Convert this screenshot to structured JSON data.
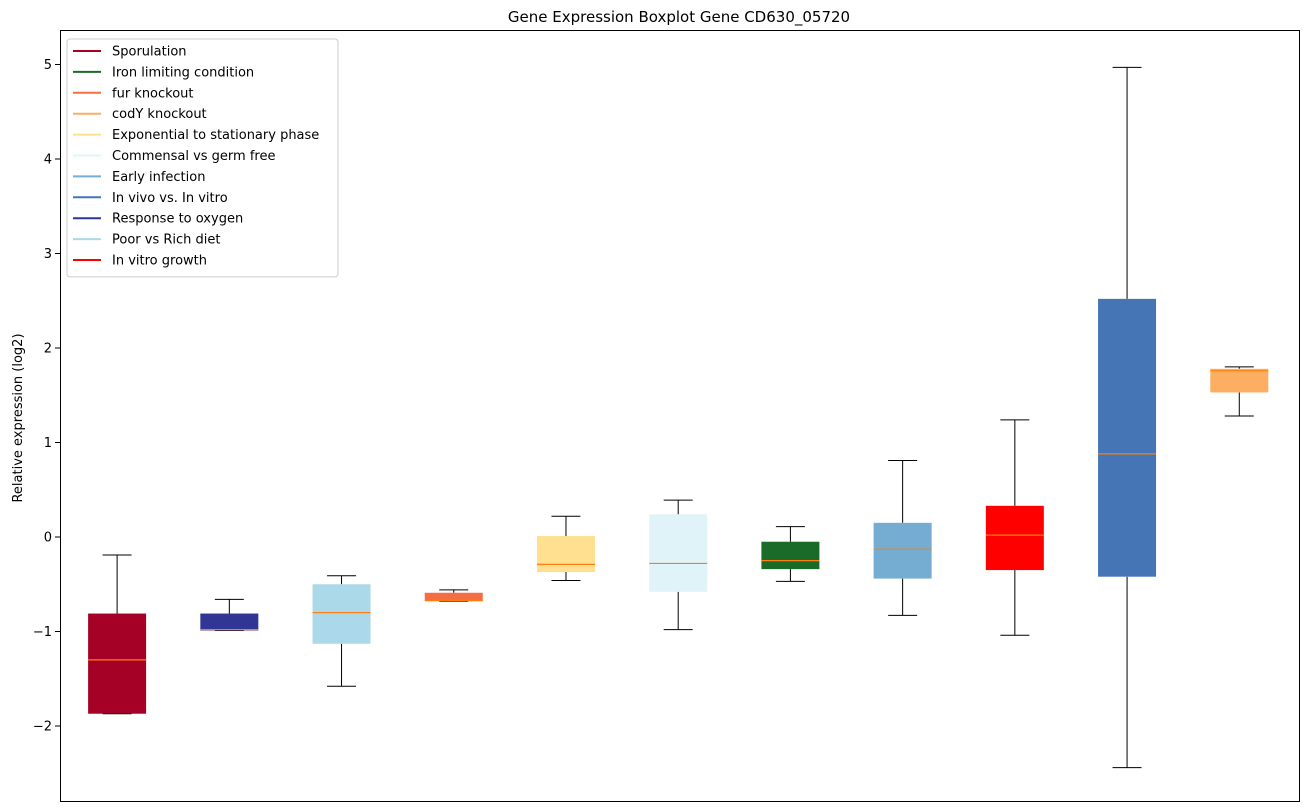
{
  "chart_data": {
    "type": "boxplot",
    "title": "Gene Expression Boxplot Gene CD630_05720",
    "xlabel": "",
    "ylabel": "Relative expression (log2)",
    "ylim": [
      -2.8,
      5.35
    ],
    "yticks": [
      -2,
      -1,
      0,
      1,
      2,
      3,
      4,
      5
    ],
    "ytick_labels": [
      "−2",
      "−1",
      "0",
      "1",
      "2",
      "3",
      "4",
      "5"
    ],
    "legend": [
      {
        "label": "Sporulation",
        "color": "#a50026"
      },
      {
        "label": "Iron limiting condition",
        "color": "#1a6b2a"
      },
      {
        "label": "fur knockout",
        "color": "#f46d43"
      },
      {
        "label": "codY knockout",
        "color": "#fdae61"
      },
      {
        "label": "Exponential to stationary phase",
        "color": "#fee090"
      },
      {
        "label": "Commensal vs germ free",
        "color": "#e0f3f8"
      },
      {
        "label": "Early infection",
        "color": "#74add1"
      },
      {
        "label": "In vivo vs. In vitro",
        "color": "#4575b4"
      },
      {
        "label": "Response to oxygen",
        "color": "#313695"
      },
      {
        "label": "Poor vs Rich diet",
        "color": "#abd9e9"
      },
      {
        "label": "In vitro growth",
        "color": "#ff0000"
      }
    ],
    "boxes": [
      {
        "condition": "Sporulation",
        "color": "#a50026",
        "whislo": -1.87,
        "q1": -1.87,
        "median": -1.3,
        "q3": -0.81,
        "whishi": -0.19
      },
      {
        "condition": "Response to oxygen",
        "color": "#313695",
        "whislo": -0.99,
        "q1": -0.99,
        "median": -0.98,
        "q3": -0.81,
        "whishi": -0.66
      },
      {
        "condition": "Poor vs Rich diet",
        "color": "#abd9e9",
        "whislo": -1.58,
        "q1": -1.13,
        "median": -0.8,
        "q3": -0.5,
        "whishi": -0.41
      },
      {
        "condition": "fur knockout",
        "color": "#f46d43",
        "whislo": -0.68,
        "q1": -0.68,
        "median": -0.67,
        "q3": -0.59,
        "whishi": -0.56
      },
      {
        "condition": "Exponential to stationary phase",
        "color": "#fee090",
        "whislo": -0.46,
        "q1": -0.37,
        "median": -0.29,
        "q3": 0.01,
        "whishi": 0.22
      },
      {
        "condition": "Commensal vs germ free",
        "color": "#e0f3f8",
        "whislo": -0.98,
        "q1": -0.58,
        "median": -0.28,
        "q3": 0.24,
        "whishi": 0.39
      },
      {
        "condition": "Iron limiting condition",
        "color": "#1a6b2a",
        "whislo": -0.47,
        "q1": -0.34,
        "median": -0.25,
        "q3": -0.05,
        "whishi": 0.11
      },
      {
        "condition": "Early infection",
        "color": "#74add1",
        "whislo": -0.83,
        "q1": -0.44,
        "median": -0.13,
        "q3": 0.15,
        "whishi": 0.81
      },
      {
        "condition": "In vitro growth",
        "color": "#ff0000",
        "whislo": -1.04,
        "q1": -0.35,
        "median": 0.02,
        "q3": 0.33,
        "whishi": 1.24
      },
      {
        "condition": "In vivo vs. In vitro",
        "color": "#4575b4",
        "whislo": -2.44,
        "q1": -0.42,
        "median": 0.88,
        "q3": 2.52,
        "whishi": 4.97
      },
      {
        "condition": "codY knockout",
        "color": "#fdae61",
        "whislo": 1.28,
        "q1": 1.53,
        "median": 1.76,
        "q3": 1.78,
        "whishi": 1.8
      }
    ],
    "median_color": "#ff7f0e",
    "grid": false,
    "legend_position": "top-left"
  }
}
